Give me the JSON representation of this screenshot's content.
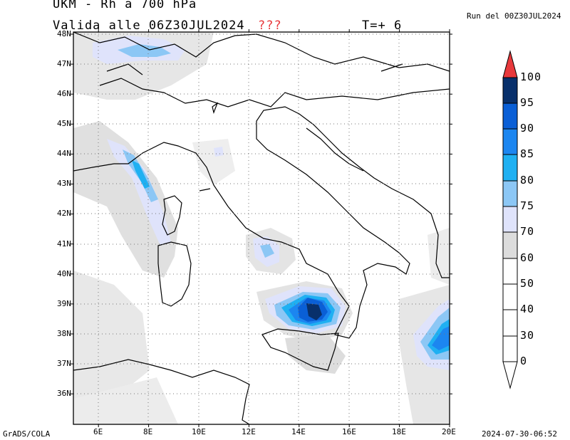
{
  "header": {
    "title": "UKM - Rh a 700 hPa",
    "valid_line": "Valida alle 06Z30JUL2024",
    "flag": "???",
    "step": "T=+ 6",
    "run": "Run del 00Z30JUL2024"
  },
  "footer": {
    "credit": "GrADS/COLA",
    "timestamp": "2024-07-30-06:52"
  },
  "axes": {
    "lat_labels": [
      "48N",
      "47N",
      "46N",
      "45N",
      "44N",
      "43N",
      "42N",
      "41N",
      "40N",
      "39N",
      "38N",
      "37N",
      "36N"
    ],
    "lon_labels": [
      "6E",
      "8E",
      "10E",
      "12E",
      "14E",
      "16E",
      "18E",
      "20E"
    ],
    "lat_values": [
      48,
      47,
      46,
      45,
      44,
      43,
      42,
      41,
      40,
      39,
      38,
      37,
      36
    ],
    "lon_values": [
      6,
      8,
      10,
      12,
      14,
      16,
      18,
      20
    ],
    "lon_range": [
      5,
      20
    ],
    "lat_range": [
      35,
      48
    ]
  },
  "legend": {
    "labels": [
      "100",
      "95",
      "90",
      "85",
      "80",
      "75",
      "70",
      "60",
      "50",
      "40",
      "30",
      "0"
    ],
    "colors": {
      "95-100": "#08306b",
      "90-95": "#0a5fd6",
      "85-90": "#1c86f0",
      "80-85": "#1fb0f2",
      "75-80": "#8cc7f5",
      "70-75": "#dfe3fb",
      "60-70": "#dcdcdc",
      "50-60": "#ffffff",
      "40-50": "#ffffff",
      "30-40": "#ffffff",
      "0-30": "#ffffff",
      "over": "#e8393c"
    }
  }
}
